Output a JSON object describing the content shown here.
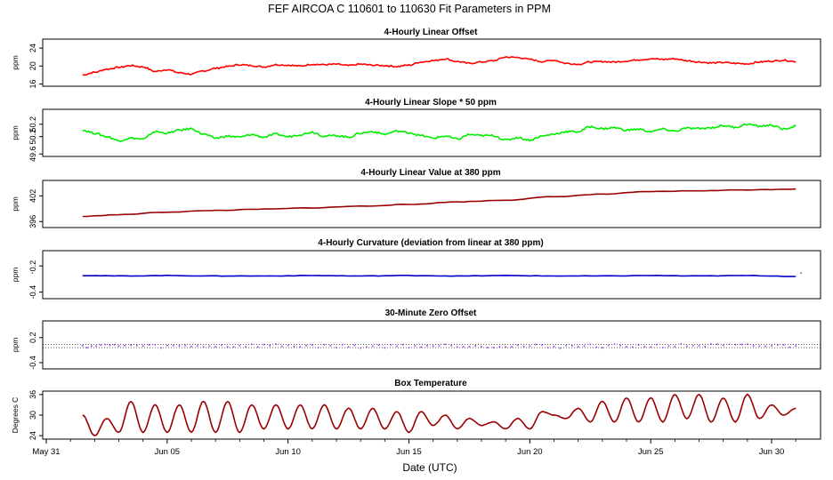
{
  "title": "FEF   AIRCOA C   110601 to 110630   Fit Parameters in PPM",
  "xlabel": "Date (UTC)",
  "xticks": [
    "May 31",
    "Jun 05",
    "Jun 10",
    "Jun 15",
    "Jun 20",
    "Jun 25",
    "Jun 30"
  ],
  "chart_data": [
    {
      "type": "line",
      "title": "4-Hourly Linear Offset",
      "ylabel": "ppm",
      "yticks": [
        "16",
        "20",
        "24"
      ],
      "ylim": [
        15.5,
        26
      ],
      "color": "#ff0000",
      "series": [
        {
          "x": [
            1.5,
            2,
            2.5,
            3,
            3.5,
            4,
            4.5,
            5,
            5.5,
            6,
            6.5,
            7,
            7.5,
            8,
            8.5,
            9,
            9.5,
            10,
            10.5,
            11,
            11.5,
            12,
            12.5,
            13,
            13.5,
            14,
            14.5,
            15,
            15.5,
            16,
            16.5,
            17,
            17.5,
            18,
            18.5,
            19,
            19.5,
            20,
            20.5,
            21,
            21.5,
            22,
            22.5,
            23,
            23.5,
            24,
            24.5,
            25,
            25.5,
            26,
            26.5,
            27,
            27.5,
            28,
            28.5,
            29,
            29.5,
            30,
            30.5,
            31
          ],
          "y": [
            18,
            18.6,
            19.3,
            19.7,
            20.1,
            19.8,
            18.8,
            19.2,
            18.5,
            18.2,
            18.9,
            19.5,
            19.9,
            20.3,
            20.1,
            19.8,
            20.3,
            20.2,
            20.0,
            20.4,
            20.3,
            20.4,
            20.1,
            20.4,
            20.2,
            20.1,
            19.9,
            20.2,
            20.9,
            21.2,
            21.6,
            21.0,
            20.6,
            20.9,
            21.2,
            22.0,
            21.9,
            21.5,
            21.0,
            21.3,
            20.6,
            20.4,
            20.9,
            21.0,
            20.9,
            21.1,
            21.4,
            21.6,
            21.5,
            21.6,
            21.2,
            20.9,
            20.7,
            20.8,
            20.6,
            20.5,
            20.9,
            21.1,
            21.3,
            21.0
          ]
        }
      ]
    },
    {
      "type": "line",
      "title": "4-Hourly Linear Slope * 50 ppm",
      "ylabel": "ppm",
      "yticks": [
        "49.6",
        "50.2",
        "50.2"
      ],
      "ylim": [
        49.55,
        50.5
      ],
      "color": "#00ee00",
      "series": [
        {
          "x": [
            1.5,
            2,
            2.5,
            3,
            3.5,
            4,
            4.5,
            5,
            5.5,
            6,
            6.5,
            7,
            7.5,
            8,
            8.5,
            9,
            9.5,
            10,
            10.5,
            11,
            11.5,
            12,
            12.5,
            13,
            13.5,
            14,
            14.5,
            15,
            15.5,
            16,
            16.5,
            17,
            17.5,
            18,
            18.5,
            19,
            19.5,
            20,
            20.5,
            21,
            21.5,
            22,
            22.5,
            23,
            23.5,
            24,
            24.5,
            25,
            25.5,
            26,
            26.5,
            27,
            27.5,
            28,
            28.5,
            29,
            29.5,
            30,
            30.5,
            31
          ],
          "y": [
            50.08,
            50.02,
            49.95,
            49.87,
            49.92,
            49.9,
            50.05,
            50.02,
            50.08,
            50.11,
            50.0,
            49.92,
            49.96,
            49.94,
            49.99,
            49.94,
            50.0,
            49.95,
            49.99,
            50.04,
            49.96,
            49.97,
            49.94,
            50.02,
            50.05,
            50.0,
            50.06,
            50.03,
            49.97,
            49.92,
            49.96,
            49.9,
            49.99,
            49.97,
            49.97,
            49.88,
            49.93,
            49.88,
            49.96,
            50.0,
            50.05,
            50.05,
            50.15,
            50.11,
            50.13,
            50.08,
            50.1,
            50.05,
            50.1,
            50.06,
            50.12,
            50.11,
            50.13,
            50.17,
            50.14,
            50.2,
            50.16,
            50.18,
            50.1,
            50.16
          ]
        }
      ]
    },
    {
      "type": "line",
      "title": "4-Hourly Linear Value at 380 ppm",
      "ylabel": "ppm",
      "yticks": [
        "396",
        "402"
      ],
      "ylim": [
        394.6,
        405.6
      ],
      "color": "#990000",
      "series": [
        {
          "x": [
            1.5,
            3,
            5,
            7,
            9,
            11,
            13,
            15,
            17,
            19,
            21,
            23,
            25,
            27,
            29,
            31
          ],
          "y": [
            397.2,
            397.6,
            398.2,
            398.6,
            398.9,
            399.2,
            399.6,
            400.0,
            400.6,
            401.0,
            401.8,
            402.4,
            403.0,
            403.2,
            403.4,
            403.6
          ]
        }
      ]
    },
    {
      "type": "line",
      "title": "4-Hourly Curvature (deviation from linear at 380 ppm)",
      "ylabel": "ppm",
      "yticks": [
        "-0.4",
        "0.2"
      ],
      "ylim": [
        -0.55,
        0.55
      ],
      "color": "#0000cc",
      "series": [
        {
          "x": [
            1.5,
            3,
            5,
            7,
            9,
            11,
            13,
            15,
            17,
            19,
            21,
            23,
            25,
            27,
            29,
            31
          ],
          "y": [
            -0.02,
            -0.03,
            -0.02,
            -0.03,
            -0.03,
            -0.02,
            -0.03,
            -0.02,
            -0.03,
            -0.02,
            -0.03,
            -0.03,
            -0.02,
            -0.03,
            -0.02,
            -0.04
          ]
        }
      ]
    },
    {
      "type": "scatter",
      "title": "30-Minute Zero Offset",
      "ylabel": "ppm",
      "yticks": [
        "-0.4",
        "0.2"
      ],
      "ylim": [
        -0.55,
        0.6
      ],
      "reference_lines": [
        0.04,
        -0.04
      ],
      "color": "#9933ff",
      "series": [
        {
          "x": [
            1.5,
            3,
            5,
            7,
            9,
            11,
            13,
            15,
            17,
            19,
            21,
            23,
            25,
            27,
            29,
            31
          ],
          "y": [
            0.0,
            0.01,
            -0.01,
            0.0,
            0.01,
            0.0,
            -0.01,
            0.0,
            0.01,
            0.0,
            -0.01,
            0.0,
            0.0,
            0.01,
            0.0,
            0.0
          ]
        }
      ]
    },
    {
      "type": "line",
      "title": "Box Temperature",
      "ylabel": "Degrees C",
      "yticks": [
        "24",
        "30",
        "36"
      ],
      "ylim": [
        23,
        37
      ],
      "color": "#990000",
      "series": [
        {
          "x": [
            1.5,
            2,
            2.5,
            3,
            3.5,
            4,
            4.5,
            5,
            5.5,
            6,
            6.5,
            7,
            7.5,
            8,
            8.5,
            9,
            9.5,
            10,
            10.5,
            11,
            11.5,
            12,
            12.5,
            13,
            13.5,
            14,
            14.5,
            15,
            15.5,
            16,
            16.5,
            17,
            17.5,
            18,
            18.5,
            19,
            19.5,
            20,
            20.5,
            21,
            21.5,
            22,
            22.5,
            23,
            23.5,
            24,
            24.5,
            25,
            25.5,
            26,
            26.5,
            27,
            27.5,
            28,
            28.5,
            29,
            29.5,
            30,
            30.5,
            31
          ],
          "y": [
            30,
            24,
            29,
            25,
            34,
            25,
            33,
            25,
            33,
            25,
            34,
            25,
            34,
            25,
            33,
            26,
            33,
            26,
            33,
            26,
            33,
            26,
            32,
            26,
            32,
            26,
            31,
            25,
            31,
            27,
            30,
            26,
            29,
            27,
            28,
            26,
            29,
            26,
            31,
            30,
            29,
            32,
            28,
            34,
            28,
            35,
            28,
            35,
            28,
            36,
            29,
            36,
            28,
            35,
            28,
            36,
            29,
            33,
            30,
            32
          ]
        }
      ]
    }
  ]
}
